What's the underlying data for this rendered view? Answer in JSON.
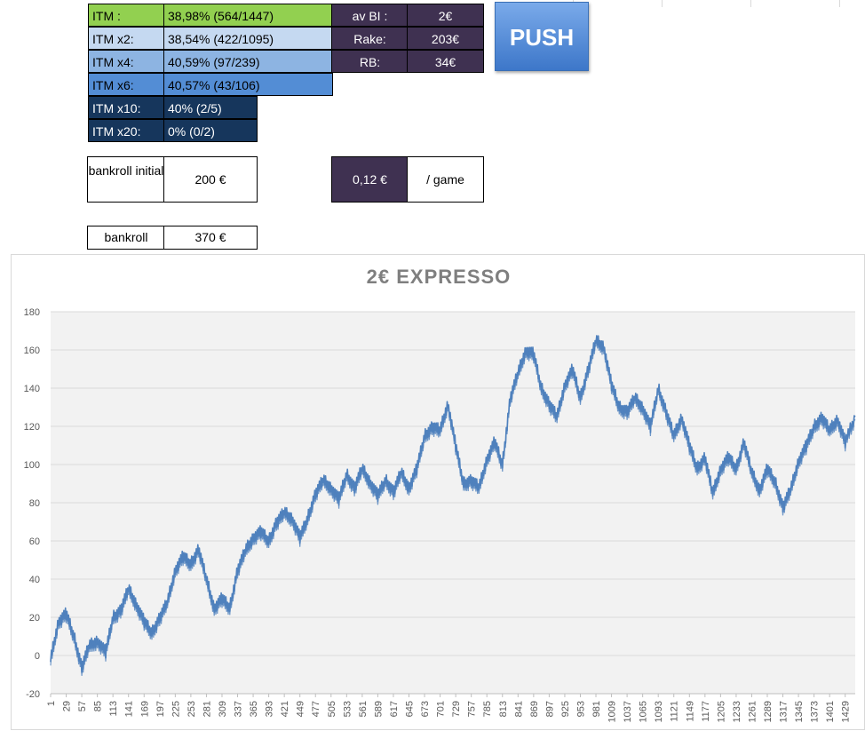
{
  "itm_table": [
    {
      "label": "ITM :",
      "value": "38,98% (564/1447)",
      "color": "#92d050",
      "text": "#000000"
    },
    {
      "label": "ITM x2:",
      "value": "38,54% (422/1095)",
      "color": "#c5d9f1",
      "text": "#000000"
    },
    {
      "label": "ITM x4:",
      "value": "40,59% (97/239)",
      "color": "#8db4e2",
      "text": "#000000"
    },
    {
      "label": "ITM x6:",
      "value": "40,57% (43/106)",
      "color": "#538dd5",
      "text": "#000000"
    },
    {
      "label": "ITM x10:",
      "value": "40% (2/5)",
      "color": "#16365c",
      "text": "#ffffff"
    },
    {
      "label": "ITM x20:",
      "value": "0% (0/2)",
      "color": "#16365c",
      "text": "#ffffff"
    }
  ],
  "stats": [
    {
      "label": "av BI :",
      "value": "2€"
    },
    {
      "label": "Rake:",
      "value": "203€"
    },
    {
      "label": "RB:",
      "value": "34€"
    }
  ],
  "push_label": "PUSH",
  "bankroll_initial": {
    "label": "bankroll initial",
    "value": "200 €"
  },
  "per_game": {
    "value": "0,12 €",
    "label": "/ game"
  },
  "bankroll": {
    "label": "bankroll",
    "value": "370 €"
  },
  "colors": {
    "dark_cell": "#3f3151",
    "line": "#4f81bd",
    "plot_bg": "#f2f2f2",
    "push": "#4a86d8"
  },
  "chart_data": {
    "type": "line",
    "title": "2€ EXPRESSO",
    "xlabel": "",
    "ylabel": "",
    "ylim": [
      -20,
      180
    ],
    "yticks": [
      -20,
      0,
      20,
      40,
      60,
      80,
      100,
      120,
      140,
      160,
      180
    ],
    "xlim": [
      1,
      1447
    ],
    "xticks": [
      1,
      29,
      57,
      85,
      113,
      141,
      169,
      197,
      225,
      253,
      281,
      309,
      337,
      365,
      393,
      421,
      449,
      477,
      505,
      533,
      561,
      589,
      617,
      645,
      673,
      701,
      729,
      757,
      785,
      813,
      841,
      869,
      897,
      925,
      953,
      981,
      1009,
      1037,
      1065,
      1093,
      1121,
      1149,
      1177,
      1205,
      1233,
      1261,
      1289,
      1317,
      1345,
      1373,
      1401,
      1429
    ],
    "grid": true,
    "legend": "none",
    "series": [
      {
        "x": [
          1,
          15,
          29,
          43,
          57,
          70,
          85,
          100,
          113,
          127,
          141,
          155,
          169,
          183,
          197,
          211,
          225,
          239,
          253,
          267,
          281,
          295,
          309,
          323,
          337,
          351,
          365,
          379,
          393,
          407,
          421,
          435,
          449,
          463,
          477,
          491,
          505,
          519,
          533,
          547,
          561,
          575,
          589,
          603,
          617,
          631,
          645,
          659,
          673,
          687,
          701,
          715,
          729,
          743,
          757,
          771,
          785,
          799,
          813,
          827,
          841,
          855,
          869,
          883,
          897,
          911,
          925,
          939,
          953,
          967,
          981,
          995,
          1009,
          1023,
          1037,
          1051,
          1065,
          1079,
          1093,
          1107,
          1121,
          1135,
          1149,
          1163,
          1177,
          1191,
          1205,
          1219,
          1233,
          1247,
          1261,
          1275,
          1289,
          1303,
          1317,
          1331,
          1345,
          1359,
          1373,
          1387,
          1401,
          1415,
          1429,
          1447
        ],
        "y": [
          -2,
          18,
          22,
          10,
          -6,
          5,
          8,
          2,
          20,
          24,
          35,
          27,
          18,
          12,
          20,
          28,
          45,
          52,
          48,
          56,
          40,
          25,
          30,
          25,
          45,
          55,
          62,
          65,
          60,
          70,
          75,
          72,
          62,
          72,
          85,
          92,
          88,
          82,
          95,
          88,
          98,
          91,
          84,
          92,
          86,
          96,
          88,
          98,
          115,
          120,
          118,
          132,
          110,
          90,
          92,
          88,
          103,
          112,
          100,
          135,
          148,
          160,
          158,
          140,
          132,
          125,
          142,
          150,
          135,
          150,
          165,
          162,
          142,
          130,
          128,
          135,
          130,
          120,
          140,
          128,
          115,
          125,
          110,
          98,
          104,
          85,
          98,
          104,
          98,
          112,
          96,
          87,
          98,
          91,
          78,
          87,
          102,
          110,
          120,
          125,
          118,
          124,
          112,
          125
        ]
      }
    ]
  }
}
